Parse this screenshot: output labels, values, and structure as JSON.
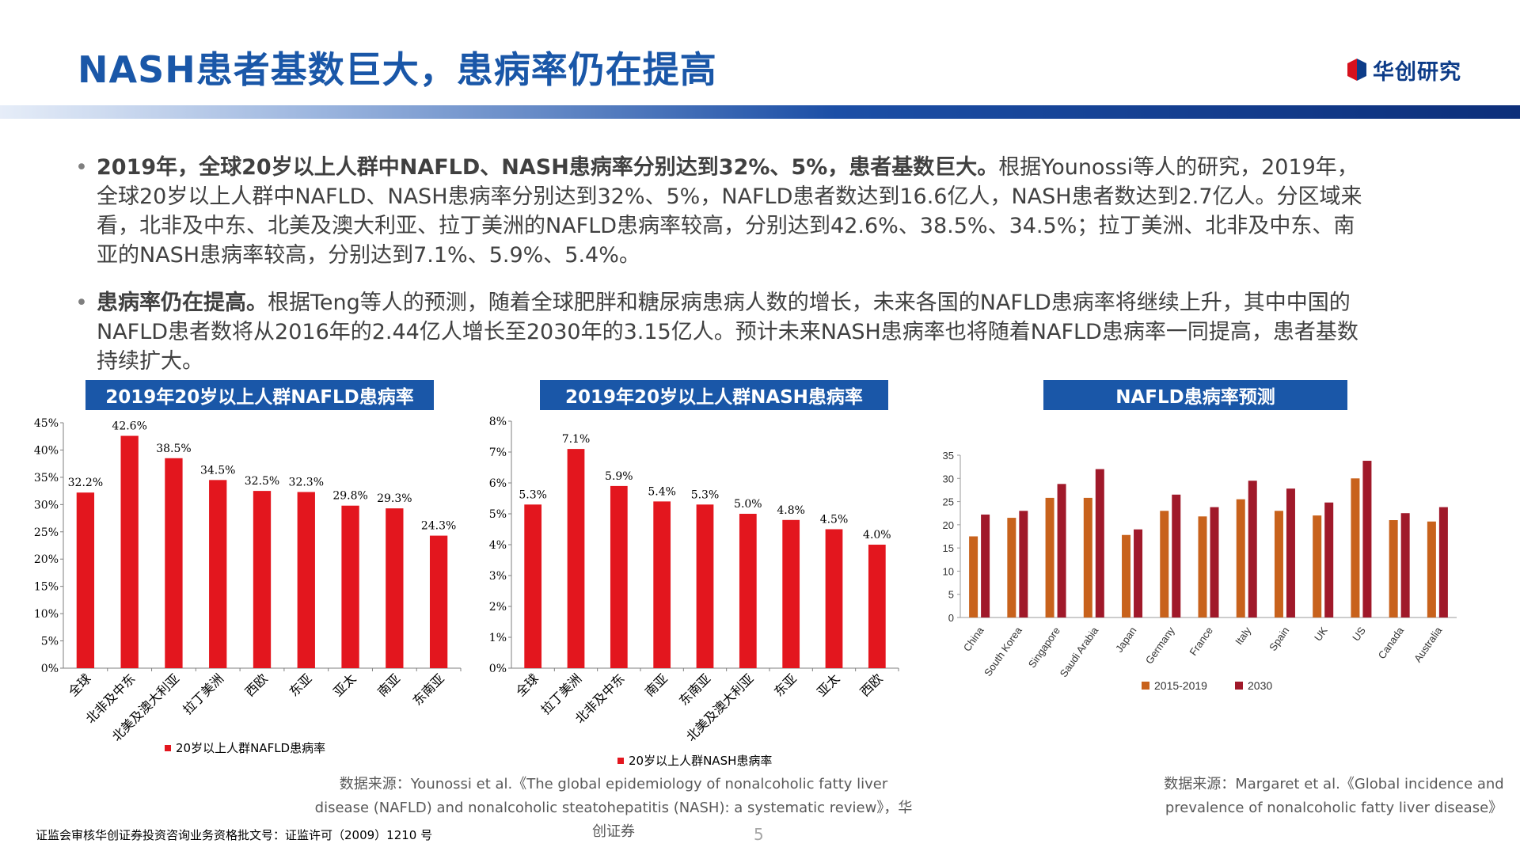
{
  "page": {
    "title": "NASH患者基数巨大，患病率仍在提高",
    "logo_text": "华创研究",
    "page_number": "5",
    "footer": "证监会审核华创证券投资咨询业务资格批文号：证监许可（2009）1210 号"
  },
  "bullets": [
    {
      "bold": "2019年，全球20岁以上人群中NAFLD、NASH患病率分别达到32%、5%，患者基数巨大。",
      "text": "根据Younossi等人的研究，2019年，全球20岁以上人群中NAFLD、NASH患病率分别达到32%、5%，NAFLD患者数达到16.6亿人，NASH患者数达到2.7亿人。分区域来看，北非及中东、北美及澳大利亚、拉丁美洲的NAFLD患病率较高，分别达到42.6%、38.5%、34.5%；拉丁美洲、北非及中东、南亚的NASH患病率较高，分别达到7.1%、5.9%、5.4%。"
    },
    {
      "bold": "患病率仍在提高。",
      "text": "根据Teng等人的预测，随着全球肥胖和糖尿病患病人数的增长，未来各国的NAFLD患病率将继续上升，其中中国的NAFLD患者数将从2016年的2.44亿人增长至2030年的3.15亿人。预计未来NASH患病率也将随着NAFLD患病率一同提高，患者基数持续扩大。"
    }
  ],
  "sources": {
    "left": "数据来源：Younossi et al.《The global epidemiology of nonalcoholic fatty liver disease (NAFLD) and nonalcoholic steatohepatitis (NASH): a systematic review》，华创证券",
    "right": "数据来源：Margaret et al.《Global incidence and prevalence of nonalcoholic fatty liver disease》"
  },
  "colors": {
    "brand_blue": "#1a57a8",
    "bar_red": "#e3161e",
    "orange": "#c8621c",
    "dark_red": "#a0192a"
  },
  "chart_data": [
    {
      "type": "bar",
      "title": "2019年20岁以上人群NAFLD患病率",
      "categories": [
        "全球",
        "北非及中东",
        "北美及澳大利亚",
        "拉丁美洲",
        "西欧",
        "东亚",
        "亚太",
        "南亚",
        "东南亚"
      ],
      "series": [
        {
          "name": "20岁以上人群NAFLD患病率",
          "values": [
            32.2,
            42.6,
            38.5,
            34.5,
            32.5,
            32.3,
            29.8,
            29.3,
            24.3
          ]
        }
      ],
      "data_labels": [
        "32.2%",
        "42.6%",
        "38.5%",
        "34.5%",
        "32.5%",
        "32.3%",
        "29.8%",
        "29.3%",
        "24.3%"
      ],
      "ylim": [
        0,
        45
      ],
      "yticks": [
        "0%",
        "5%",
        "10%",
        "15%",
        "20%",
        "25%",
        "30%",
        "35%",
        "40%",
        "45%"
      ],
      "legend": "bottom",
      "grid": false
    },
    {
      "type": "bar",
      "title": "2019年20岁以上人群NASH患病率",
      "categories": [
        "全球",
        "拉丁美洲",
        "北非及中东",
        "南亚",
        "东南亚",
        "北美及澳大利亚",
        "东亚",
        "亚太",
        "西欧"
      ],
      "series": [
        {
          "name": "20岁以上人群NASH患病率",
          "values": [
            5.3,
            7.1,
            5.9,
            5.4,
            5.3,
            5.0,
            4.8,
            4.5,
            4.0
          ]
        }
      ],
      "data_labels": [
        "5.3%",
        "7.1%",
        "5.9%",
        "5.4%",
        "5.3%",
        "5.0%",
        "4.8%",
        "4.5%",
        "4.0%"
      ],
      "ylim": [
        0,
        8
      ],
      "yticks": [
        "0%",
        "1%",
        "2%",
        "3%",
        "4%",
        "5%",
        "6%",
        "7%",
        "8%"
      ],
      "legend": "bottom",
      "grid": false
    },
    {
      "type": "bar",
      "title": "NAFLD患病率预测",
      "categories": [
        "China",
        "South Korea",
        "Singapore",
        "Saudi Arabia",
        "Japan",
        "Germany",
        "France",
        "Italy",
        "Spain",
        "UK",
        "US",
        "Canada",
        "Australia"
      ],
      "series": [
        {
          "name": "2015-2019",
          "values": [
            17.5,
            21.5,
            25.8,
            25.8,
            17.8,
            23.0,
            21.8,
            25.5,
            23.0,
            22.0,
            30.0,
            21.0,
            20.7
          ]
        },
        {
          "name": "2030",
          "values": [
            22.2,
            23.0,
            28.8,
            32.0,
            19.0,
            26.5,
            23.8,
            29.5,
            27.8,
            24.8,
            33.8,
            22.5,
            23.8
          ]
        }
      ],
      "ylim": [
        0,
        35
      ],
      "yticks": [
        "0",
        "5",
        "10",
        "15",
        "20",
        "25",
        "30",
        "35"
      ],
      "legend": "bottom",
      "grid": false
    }
  ]
}
